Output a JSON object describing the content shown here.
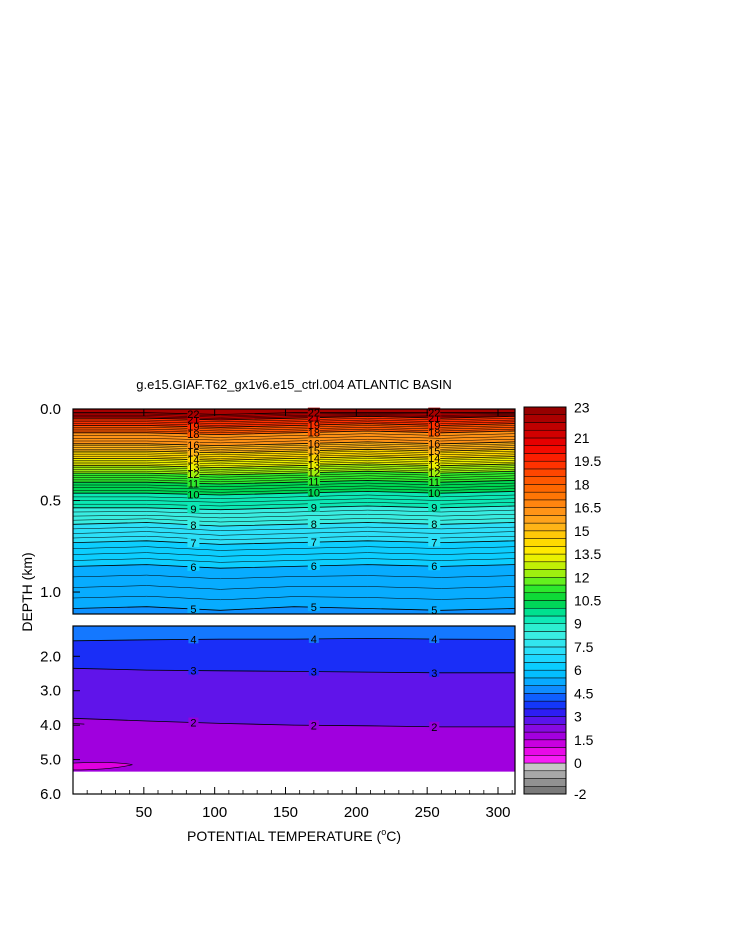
{
  "chart_data": {
    "type": "heatmap",
    "title": "g.e15.GIAF.T62_gx1v6.e15_ctrl.004 ATLANTIC BASIN",
    "xlabel": "POTENTIAL TEMPERATURE (",
    "xlabel_unit": "o",
    "xlabel_tail": "C)",
    "ylabel": "DEPTH (km)",
    "x_ticks": [
      "50",
      "100",
      "150",
      "200",
      "250",
      "300"
    ],
    "x_tick_values": [
      50,
      100,
      150,
      200,
      250,
      300
    ],
    "xlim": [
      0,
      312
    ],
    "upper_panel": {
      "ylim": [
        0,
        1.12
      ],
      "y_ticks": [
        "0.0",
        "0.5",
        "1.0"
      ],
      "y_tick_values": [
        0,
        0.5,
        1.0
      ],
      "contours": [
        {
          "level": 5,
          "label": "5",
          "depths": [
            1.09,
            1.08,
            1.1,
            1.08,
            1.09,
            1.1,
            1.09
          ]
        },
        {
          "level": 6,
          "label": "6",
          "depths": [
            0.86,
            0.85,
            0.87,
            0.86,
            0.85,
            0.86,
            0.85
          ]
        },
        {
          "level": 7,
          "label": "7",
          "depths": [
            0.73,
            0.72,
            0.74,
            0.73,
            0.72,
            0.73,
            0.72
          ]
        },
        {
          "level": 8,
          "label": "8",
          "depths": [
            0.63,
            0.62,
            0.64,
            0.63,
            0.62,
            0.63,
            0.62
          ]
        },
        {
          "level": 9,
          "label": "9",
          "depths": [
            0.54,
            0.54,
            0.55,
            0.54,
            0.53,
            0.54,
            0.53
          ]
        },
        {
          "level": 10,
          "label": "10",
          "depths": [
            0.46,
            0.46,
            0.47,
            0.46,
            0.45,
            0.46,
            0.45
          ]
        },
        {
          "level": 11,
          "label": "11",
          "depths": [
            0.4,
            0.4,
            0.41,
            0.4,
            0.39,
            0.4,
            0.39
          ]
        },
        {
          "level": 12,
          "label": "12",
          "depths": [
            0.35,
            0.35,
            0.36,
            0.35,
            0.34,
            0.35,
            0.34
          ]
        },
        {
          "level": 13,
          "label": "13",
          "depths": [
            0.31,
            0.31,
            0.32,
            0.31,
            0.3,
            0.31,
            0.3
          ]
        },
        {
          "level": 14,
          "label": "14",
          "depths": [
            0.27,
            0.27,
            0.28,
            0.27,
            0.26,
            0.27,
            0.26
          ]
        },
        {
          "level": 15,
          "label": "15",
          "depths": [
            0.23,
            0.23,
            0.24,
            0.23,
            0.22,
            0.23,
            0.22
          ]
        },
        {
          "level": 16,
          "label": "16",
          "depths": [
            0.19,
            0.19,
            0.2,
            0.19,
            0.18,
            0.19,
            0.18
          ]
        },
        {
          "level": 18,
          "label": "18",
          "depths": [
            0.13,
            0.13,
            0.14,
            0.13,
            0.12,
            0.13,
            0.12
          ]
        },
        {
          "level": 19,
          "label": "19",
          "depths": [
            0.09,
            0.09,
            0.1,
            0.09,
            0.08,
            0.09,
            0.08
          ]
        },
        {
          "level": 21,
          "label": "21",
          "depths": [
            0.05,
            0.05,
            0.06,
            0.05,
            0.04,
            0.05,
            0.04
          ]
        },
        {
          "level": 22,
          "label": "22",
          "depths": [
            0.02,
            0.02,
            0.03,
            0.02,
            0.02,
            0.02,
            0.02
          ]
        }
      ]
    },
    "lower_panel": {
      "ylim": [
        1.12,
        6.0
      ],
      "y_ticks": [
        "2.0",
        "3.0",
        "4.0",
        "5.0",
        "6.0"
      ],
      "y_tick_values": [
        2,
        3,
        4,
        5,
        6
      ],
      "bottom_depth": 5.35,
      "contours": [
        {
          "level": 4,
          "label": "4",
          "depths": [
            1.55,
            1.52,
            1.5,
            1.5,
            1.48,
            1.5,
            1.51
          ]
        },
        {
          "level": 3,
          "label": "3",
          "depths": [
            2.35,
            2.4,
            2.42,
            2.44,
            2.46,
            2.48,
            2.48
          ]
        },
        {
          "level": 2,
          "label": "2",
          "depths": [
            3.8,
            3.88,
            3.95,
            4.0,
            4.02,
            4.05,
            4.05
          ]
        },
        {
          "level": 1.5,
          "label": "",
          "depths": []
        }
      ]
    },
    "contour_label_x": [
      85,
      170,
      255
    ],
    "colorbar": {
      "tick_labels": [
        "23",
        "21",
        "19.5",
        "18",
        "16.5",
        "15",
        "13.5",
        "12",
        "10.5",
        "9",
        "7.5",
        "6",
        "4.5",
        "3",
        "1.5",
        "0",
        "-2"
      ],
      "tick_values": [
        23,
        21,
        19.5,
        18,
        16.5,
        15,
        13.5,
        12,
        10.5,
        9,
        7.5,
        6,
        4.5,
        3,
        1.5,
        0,
        -2
      ],
      "levels": [
        -2,
        -1.5,
        -1,
        -0.5,
        0,
        0.5,
        1,
        1.5,
        2,
        2.5,
        3,
        3.5,
        4,
        4.5,
        5,
        5.5,
        6,
        6.5,
        7,
        7.5,
        8,
        8.5,
        9,
        9.5,
        10,
        10.5,
        11,
        11.5,
        12,
        12.5,
        13,
        13.5,
        14,
        14.5,
        15,
        15.5,
        16,
        16.5,
        17,
        17.5,
        18,
        18.5,
        19,
        19.5,
        20,
        20.5,
        21,
        21.5,
        22,
        22.5,
        23
      ],
      "stops": [
        {
          "v": -2,
          "c": "#6e6e6e"
        },
        {
          "v": -0.5,
          "c": "#b4b4b4"
        },
        {
          "v": -0.1,
          "c": "#d2d2d2"
        },
        {
          "v": 0,
          "c": "#ff28ff"
        },
        {
          "v": 1,
          "c": "#e000e0"
        },
        {
          "v": 1.5,
          "c": "#b000e0"
        },
        {
          "v": 2,
          "c": "#9600dc"
        },
        {
          "v": 2.5,
          "c": "#7814e6"
        },
        {
          "v": 3,
          "c": "#3c14f0"
        },
        {
          "v": 3.5,
          "c": "#1e28f5"
        },
        {
          "v": 4,
          "c": "#0a46ff"
        },
        {
          "v": 4.5,
          "c": "#1478ff"
        },
        {
          "v": 5,
          "c": "#0aa0ff"
        },
        {
          "v": 6,
          "c": "#00c8ff"
        },
        {
          "v": 7,
          "c": "#28dcff"
        },
        {
          "v": 8.5,
          "c": "#3cf0dc"
        },
        {
          "v": 9.5,
          "c": "#00e6aa"
        },
        {
          "v": 10.5,
          "c": "#00d23c"
        },
        {
          "v": 11.5,
          "c": "#3cf028"
        },
        {
          "v": 12,
          "c": "#8cf014"
        },
        {
          "v": 13,
          "c": "#d2f000"
        },
        {
          "v": 13.5,
          "c": "#fff000"
        },
        {
          "v": 14.5,
          "c": "#ffd200"
        },
        {
          "v": 15.5,
          "c": "#ffaa1e"
        },
        {
          "v": 16.5,
          "c": "#ff8c14"
        },
        {
          "v": 17.5,
          "c": "#ff6e00"
        },
        {
          "v": 18.5,
          "c": "#ff5000"
        },
        {
          "v": 19.5,
          "c": "#ff2800"
        },
        {
          "v": 20.5,
          "c": "#f00000"
        },
        {
          "v": 21.5,
          "c": "#c80000"
        },
        {
          "v": 22.5,
          "c": "#a00000"
        },
        {
          "v": 23,
          "c": "#8c0000"
        }
      ]
    }
  }
}
